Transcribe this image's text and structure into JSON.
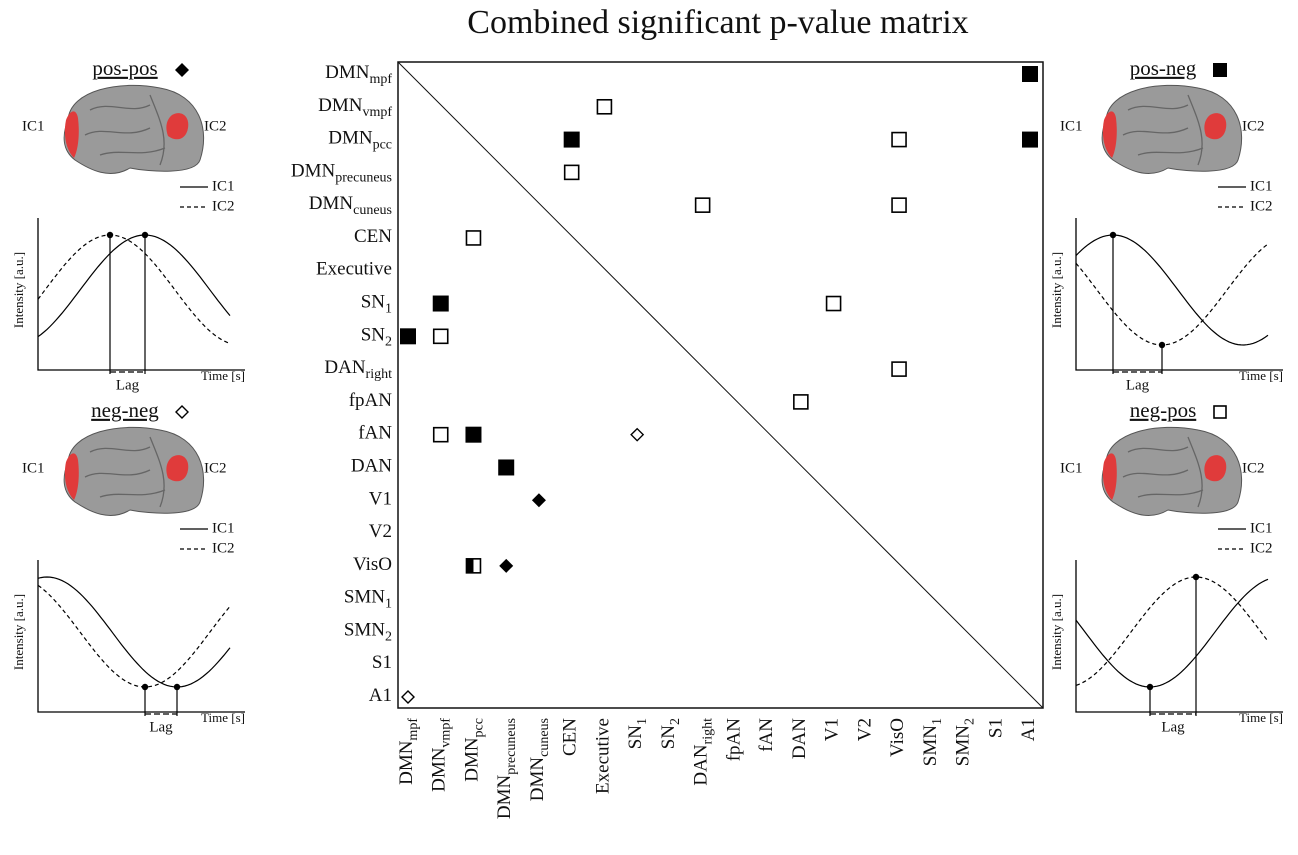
{
  "title": "Combined significant p-value matrix",
  "labels": [
    {
      "base": "DMN",
      "sub": "mpf"
    },
    {
      "base": "DMN",
      "sub": "vmpf"
    },
    {
      "base": "DMN",
      "sub": "pcc"
    },
    {
      "base": "DMN",
      "sub": "precuneus"
    },
    {
      "base": "DMN",
      "sub": "cuneus"
    },
    {
      "base": "CEN"
    },
    {
      "base": "Executive"
    },
    {
      "base": "SN",
      "sub": "1"
    },
    {
      "base": "SN",
      "sub": "2"
    },
    {
      "base": "DAN",
      "sub": "right"
    },
    {
      "base": "fpAN"
    },
    {
      "base": "fAN"
    },
    {
      "base": "DAN"
    },
    {
      "base": "V1"
    },
    {
      "base": "V2"
    },
    {
      "base": "VisO"
    },
    {
      "base": "SMN",
      "sub": "1"
    },
    {
      "base": "SMN",
      "sub": "2"
    },
    {
      "base": "S1"
    },
    {
      "base": "A1"
    }
  ],
  "markers": [
    {
      "row": 0,
      "col": 19,
      "kind": "pos-neg"
    },
    {
      "row": 1,
      "col": 6,
      "kind": "neg-pos"
    },
    {
      "row": 2,
      "col": 5,
      "kind": "pos-neg"
    },
    {
      "row": 2,
      "col": 15,
      "kind": "neg-pos"
    },
    {
      "row": 2,
      "col": 19,
      "kind": "pos-neg"
    },
    {
      "row": 3,
      "col": 5,
      "kind": "neg-pos"
    },
    {
      "row": 4,
      "col": 9,
      "kind": "neg-pos"
    },
    {
      "row": 4,
      "col": 15,
      "kind": "neg-pos"
    },
    {
      "row": 5,
      "col": 2,
      "kind": "neg-pos"
    },
    {
      "row": 7,
      "col": 1,
      "kind": "pos-neg"
    },
    {
      "row": 7,
      "col": 13,
      "kind": "neg-pos"
    },
    {
      "row": 8,
      "col": 0,
      "kind": "pos-neg"
    },
    {
      "row": 8,
      "col": 1,
      "kind": "neg-pos"
    },
    {
      "row": 9,
      "col": 15,
      "kind": "neg-pos"
    },
    {
      "row": 10,
      "col": 12,
      "kind": "neg-pos"
    },
    {
      "row": 11,
      "col": 1,
      "kind": "neg-pos"
    },
    {
      "row": 11,
      "col": 2,
      "kind": "pos-neg"
    },
    {
      "row": 11,
      "col": 7,
      "kind": "neg-neg"
    },
    {
      "row": 12,
      "col": 3,
      "kind": "pos-neg"
    },
    {
      "row": 13,
      "col": 4,
      "kind": "pos-pos"
    },
    {
      "row": 15,
      "col": 2,
      "kind": "mixed"
    },
    {
      "row": 15,
      "col": 3,
      "kind": "pos-pos"
    },
    {
      "row": 19,
      "col": 0,
      "kind": "neg-neg"
    }
  ],
  "panels": [
    {
      "title": "pos-pos",
      "kind": "pos-pos",
      "ic1": "IC1",
      "ic2": "IC2",
      "legend": [
        "IC1",
        "IC2"
      ],
      "ylabel": "Intensity [a.u.]",
      "xlabel": "Time [s]",
      "lag": "Lag"
    },
    {
      "title": "neg-neg",
      "kind": "neg-neg",
      "ic1": "IC1",
      "ic2": "IC2",
      "legend": [
        "IC1",
        "IC2"
      ],
      "ylabel": "Intensity [a.u.]",
      "xlabel": "Time [s]",
      "lag": "Lag"
    },
    {
      "title": "pos-neg",
      "kind": "pos-neg",
      "ic1": "IC1",
      "ic2": "IC2",
      "legend": [
        "IC1",
        "IC2"
      ],
      "ylabel": "Intensity [a.u.]",
      "xlabel": "Time [s]",
      "lag": "Lag"
    },
    {
      "title": "neg-pos",
      "kind": "neg-pos",
      "ic1": "IC1",
      "ic2": "IC2",
      "legend": [
        "IC1",
        "IC2"
      ],
      "ylabel": "Intensity [a.u.]",
      "xlabel": "Time [s]",
      "lag": "Lag"
    }
  ]
}
